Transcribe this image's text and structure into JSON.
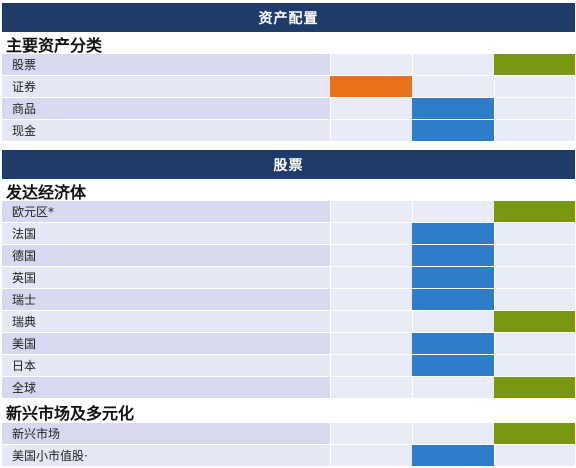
{
  "colors": {
    "header_bg": "#1f3b69",
    "underweight": "#e8711a",
    "neutral": "#2f7cc9",
    "overweight": "#7a9714"
  },
  "sections": [
    {
      "header": "资产配置",
      "groups": [
        {
          "title": "主要资产分类",
          "rows": [
            {
              "label": "股票",
              "level": "overweight",
              "column": 2
            },
            {
              "label": "证券",
              "level": "underweight",
              "column": 0
            },
            {
              "label": "商品",
              "level": "neutral",
              "column": 1
            },
            {
              "label": "现金",
              "level": "neutral",
              "column": 1
            }
          ]
        }
      ]
    },
    {
      "header": "股票",
      "groups": [
        {
          "title": "发达经济体",
          "rows": [
            {
              "label": "欧元区*",
              "level": "overweight",
              "column": 2
            },
            {
              "label": "法国",
              "level": "neutral",
              "column": 1
            },
            {
              "label": "德国",
              "level": "neutral",
              "column": 1
            },
            {
              "label": "英国",
              "level": "neutral",
              "column": 1
            },
            {
              "label": "瑞士",
              "level": "neutral",
              "column": 1
            },
            {
              "label": "瑞典",
              "level": "overweight",
              "column": 2
            },
            {
              "label": "美国",
              "level": "neutral",
              "column": 1
            },
            {
              "label": "日本",
              "level": "neutral",
              "column": 1
            },
            {
              "label": "全球",
              "level": "overweight",
              "column": 2
            }
          ]
        },
        {
          "title": "新兴市场及多元化",
          "rows": [
            {
              "label": "新兴市场",
              "level": "overweight",
              "column": 2
            },
            {
              "label": "美国小市值股·",
              "level": "neutral",
              "column": 1
            }
          ]
        }
      ]
    }
  ]
}
